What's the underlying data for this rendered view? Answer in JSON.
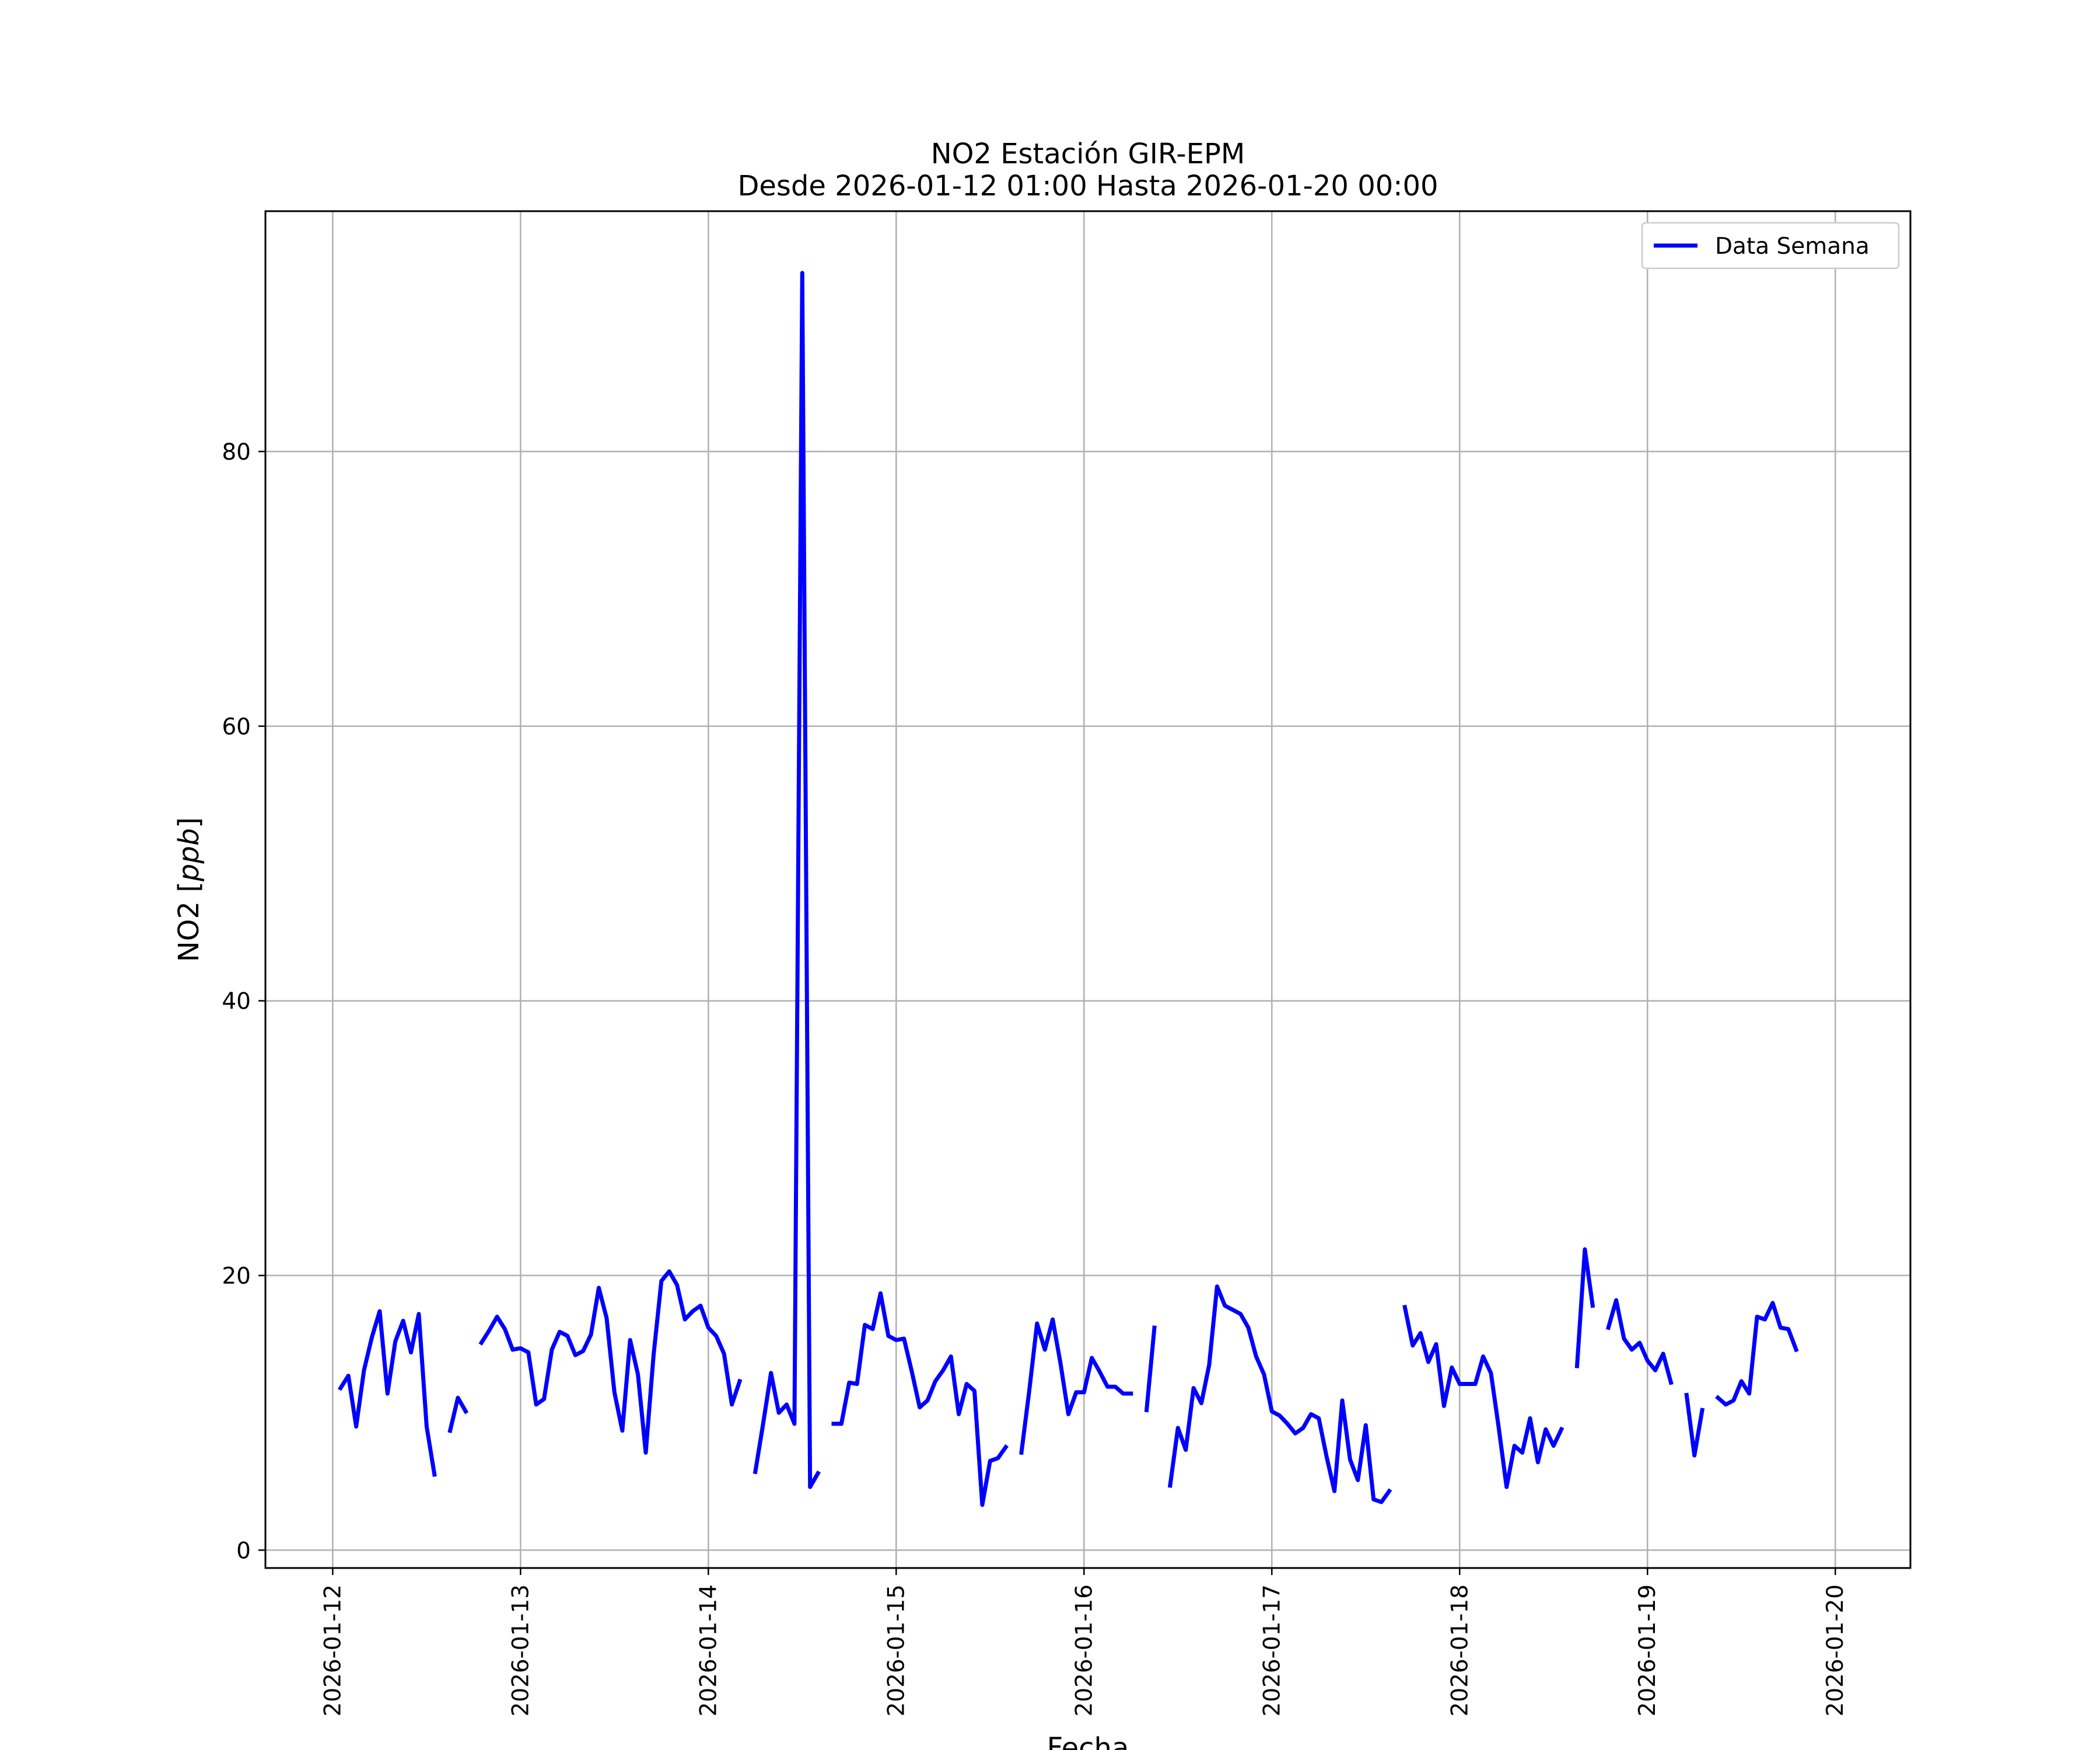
{
  "chart_data": {
    "type": "line",
    "title": "NO2 Estación GIR-EPM",
    "subtitle": "Desde 2026-01-12 01:00 Hasta 2026-01-20 00:00",
    "xlabel": "Fecha",
    "ylabel": "NO2 [ppb]",
    "ylabel_parts": {
      "prefix": "NO2 [",
      "unit": "ppb",
      "suffix": "]"
    },
    "xlim": [
      "2026-01-11 15:24",
      "2026-01-20 09:36"
    ],
    "ylim": [
      -1.3,
      97.5
    ],
    "x_ticks": [
      "2026-01-12",
      "2026-01-13",
      "2026-01-14",
      "2026-01-15",
      "2026-01-16",
      "2026-01-17",
      "2026-01-18",
      "2026-01-19",
      "2026-01-20"
    ],
    "y_ticks": [
      0,
      20,
      40,
      60,
      80
    ],
    "grid": true,
    "legend_position": "upper right",
    "series": [
      {
        "name": "Data Semana",
        "color": "#0000ff",
        "x_start": "2026-01-12 01:00",
        "x_step_hours": 1,
        "values": [
          11.8,
          12.7,
          9.0,
          13.1,
          15.5,
          17.4,
          11.4,
          15.2,
          16.7,
          14.4,
          17.2,
          9.0,
          5.5,
          null,
          8.7,
          11.1,
          10.1,
          null,
          15.1,
          16.0,
          17.0,
          16.1,
          14.6,
          14.7,
          14.4,
          10.6,
          11.0,
          14.6,
          15.9,
          15.6,
          14.2,
          14.5,
          15.7,
          19.1,
          16.9,
          11.5,
          8.7,
          15.3,
          12.8,
          7.1,
          14.2,
          19.6,
          20.3,
          19.3,
          16.8,
          17.4,
          17.8,
          16.2,
          15.6,
          14.3,
          10.6,
          12.3,
          null,
          5.7,
          9.2,
          12.9,
          10.0,
          10.6,
          9.2,
          93.0,
          4.6,
          5.6,
          null,
          9.2,
          9.2,
          12.2,
          12.1,
          16.4,
          16.1,
          18.7,
          15.6,
          15.3,
          15.4,
          13.0,
          10.4,
          10.9,
          12.3,
          13.1,
          14.1,
          9.9,
          12.1,
          11.6,
          3.3,
          6.5,
          6.7,
          7.5,
          null,
          7.1,
          11.6,
          16.5,
          14.6,
          16.8,
          13.6,
          9.9,
          11.5,
          11.5,
          14.0,
          13.0,
          11.9,
          11.9,
          11.4,
          11.4,
          null,
          10.2,
          16.2,
          null,
          4.7,
          8.9,
          7.3,
          11.8,
          10.7,
          13.5,
          19.2,
          17.8,
          17.5,
          17.2,
          16.2,
          14.1,
          12.8,
          10.1,
          9.8,
          9.2,
          8.5,
          8.9,
          9.9,
          9.6,
          6.8,
          4.3,
          10.9,
          6.6,
          5.1,
          9.1,
          3.7,
          3.5,
          4.3,
          null,
          17.7,
          14.9,
          15.8,
          13.7,
          15.0,
          10.5,
          13.3,
          12.1,
          12.1,
          12.1,
          14.1,
          12.9,
          8.9,
          4.6,
          7.6,
          7.1,
          9.6,
          6.4,
          8.8,
          7.6,
          8.8,
          null,
          13.4,
          21.9,
          17.8,
          null,
          16.2,
          18.2,
          15.4,
          14.6,
          15.1,
          13.8,
          13.1,
          14.3,
          12.2,
          null,
          11.3,
          6.9,
          10.2,
          null,
          11.1,
          10.6,
          10.9,
          12.3,
          11.4,
          17.0,
          16.8,
          18.0,
          16.2,
          16.1,
          14.6
        ]
      }
    ]
  },
  "legend": {
    "label": "Data Semana"
  }
}
